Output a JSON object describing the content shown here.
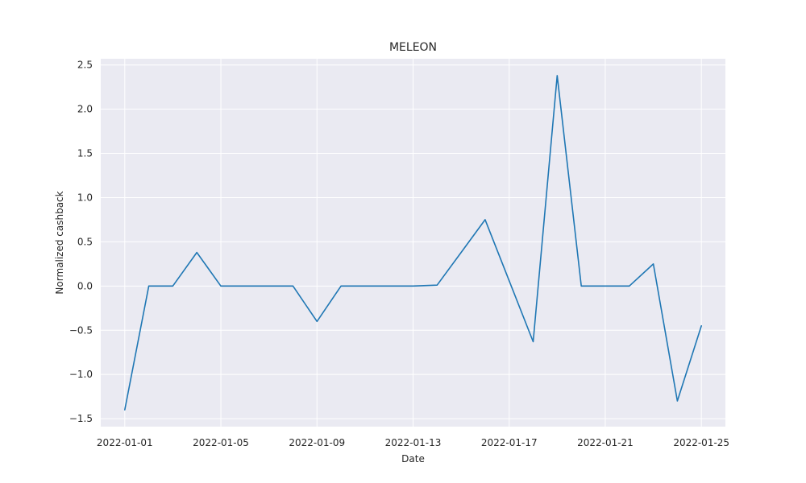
{
  "chart_data": {
    "type": "line",
    "title": "MELEON",
    "xlabel": "Date",
    "ylabel": "Normalized cashback",
    "x": [
      "2022-01-01",
      "2022-01-02",
      "2022-01-03",
      "2022-01-04",
      "2022-01-05",
      "2022-01-06",
      "2022-01-07",
      "2022-01-08",
      "2022-01-09",
      "2022-01-10",
      "2022-01-11",
      "2022-01-12",
      "2022-01-13",
      "2022-01-14",
      "2022-01-15",
      "2022-01-16",
      "2022-01-17",
      "2022-01-18",
      "2022-01-19",
      "2022-01-20",
      "2022-01-21",
      "2022-01-22",
      "2022-01-23",
      "2022-01-24",
      "2022-01-25"
    ],
    "series": [
      {
        "values": [
          -1.4,
          0.0,
          0.0,
          0.38,
          0.0,
          0.0,
          0.0,
          0.0,
          -0.4,
          0.0,
          0.0,
          0.0,
          0.0,
          0.01,
          0.38,
          0.75,
          0.06,
          -0.63,
          2.38,
          0.0,
          0.0,
          0.0,
          0.25,
          -1.3,
          -0.45
        ]
      }
    ],
    "xticks": [
      "2022-01-01",
      "2022-01-05",
      "2022-01-09",
      "2022-01-13",
      "2022-01-17",
      "2022-01-21",
      "2022-01-25"
    ],
    "yticks": [
      -1.5,
      -1.0,
      -0.5,
      0.0,
      0.5,
      1.0,
      1.5,
      2.0,
      2.5
    ],
    "ytick_labels": [
      "−1.5",
      "−1.0",
      "−0.5",
      "0.0",
      "0.5",
      "1.0",
      "1.5",
      "2.0",
      "2.5"
    ],
    "xlim": [
      "2021-12-31T00:00",
      "2022-01-26T00:00"
    ],
    "ylim": [
      -1.59,
      2.57
    ],
    "grid": true,
    "colors": {
      "line": "#1f77b4",
      "plot_bg": "#eaeaf2",
      "grid": "#ffffff"
    }
  }
}
